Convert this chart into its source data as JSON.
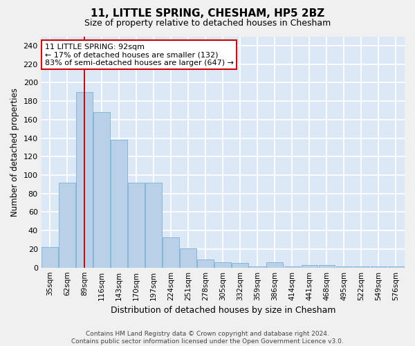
{
  "title": "11, LITTLE SPRING, CHESHAM, HP5 2BZ",
  "subtitle": "Size of property relative to detached houses in Chesham",
  "xlabel": "Distribution of detached houses by size in Chesham",
  "ylabel": "Number of detached properties",
  "categories": [
    "35sqm",
    "62sqm",
    "89sqm",
    "116sqm",
    "143sqm",
    "170sqm",
    "197sqm",
    "224sqm",
    "251sqm",
    "278sqm",
    "305sqm",
    "332sqm",
    "359sqm",
    "386sqm",
    "414sqm",
    "441sqm",
    "468sqm",
    "495sqm",
    "522sqm",
    "549sqm",
    "576sqm"
  ],
  "values": [
    22,
    92,
    190,
    168,
    138,
    92,
    92,
    33,
    21,
    9,
    6,
    5,
    1,
    6,
    1,
    3,
    3,
    1,
    1,
    1,
    1
  ],
  "bar_color": "#b8d0e8",
  "bar_edge_color": "#7aafd4",
  "vline_index": 2,
  "vline_color": "#cc0000",
  "annotation_text": "11 LITTLE SPRING: 92sqm\n← 17% of detached houses are smaller (132)\n83% of semi-detached houses are larger (647) →",
  "annotation_box_facecolor": "#ffffff",
  "annotation_box_edgecolor": "#cc0000",
  "ylim": [
    0,
    250
  ],
  "yticks": [
    0,
    20,
    40,
    60,
    80,
    100,
    120,
    140,
    160,
    180,
    200,
    220,
    240
  ],
  "fig_facecolor": "#f0f0f0",
  "ax_facecolor": "#dce8f5",
  "grid_color": "#ffffff",
  "footer": "Contains HM Land Registry data © Crown copyright and database right 2024.\nContains public sector information licensed under the Open Government Licence v3.0."
}
